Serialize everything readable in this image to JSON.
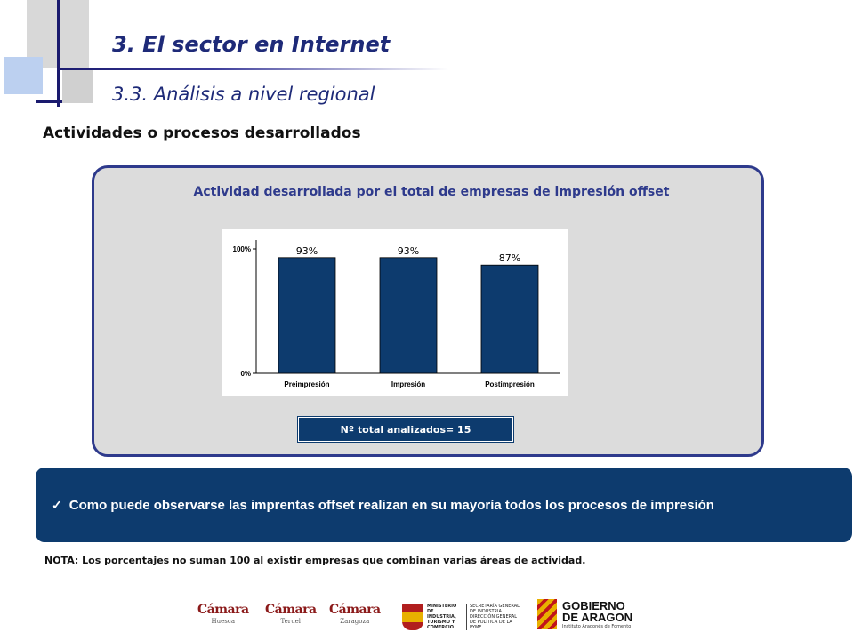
{
  "header": {
    "title": "3. El sector en Internet",
    "subtitle": "3.3. Análisis a nivel regional"
  },
  "section_heading": "Actividades o procesos desarrollados",
  "chart_data": {
    "type": "bar",
    "title": "Actividad desarrollada por el total de empresas de impresión offset",
    "categories": [
      "Preimpresión",
      "Impresión",
      "Postimpresión"
    ],
    "values": [
      93,
      93,
      87
    ],
    "value_labels": [
      "93%",
      "93%",
      "87%"
    ],
    "ylim": [
      0,
      100
    ],
    "ytick_labels": [
      "100%",
      "0%"
    ],
    "grid": false,
    "bar_color": "#0d3b6e"
  },
  "total_box": "Nº total analizados= 15",
  "conclusion": {
    "check": "✓",
    "text": "Como puede observarse las imprentas offset realizan en su mayoría todos los procesos de impresión"
  },
  "note": "NOTA: Los porcentajes no suman 100 al existir empresas que combinan varias áreas de actividad.",
  "footer_logos": {
    "camara_word": "Cámara",
    "camara_cities": [
      "Huesca",
      "Teruel",
      "Zaragoza"
    ],
    "ministerio_left": "MINISTERIO DE INDUSTRIA, TURISMO Y COMERCIO",
    "ministerio_right": "SECRETARÍA GENERAL DE INDUSTRIA DIRECCIÓN GENERAL DE POLÍTICA DE LA PYME",
    "gobierno_line1": "GOBIERNO",
    "gobierno_line2": "DE ARAGON",
    "gobierno_sub": "Instituto Aragonés de Fomento"
  }
}
